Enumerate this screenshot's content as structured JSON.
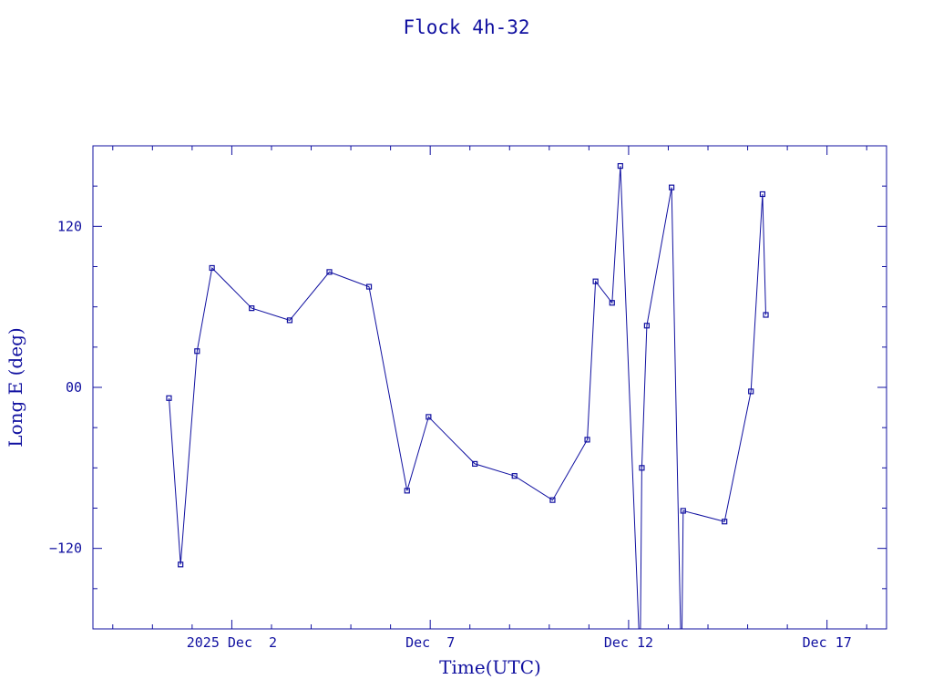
{
  "colors": {
    "ink": "#1010a0",
    "background": "#ffffff"
  },
  "chart_data": {
    "type": "line",
    "title": "Flock 4h-32",
    "xlabel": "Time(UTC)",
    "ylabel": "Long E (deg)",
    "x_ticks": [
      {
        "label": "2025 Dec  2",
        "x": "2025-12-02"
      },
      {
        "label": "Dec  7",
        "x": "2025-12-07"
      },
      {
        "label": "Dec 12",
        "x": "2025-12-12"
      },
      {
        "label": "Dec 17",
        "x": "2025-12-17"
      }
    ],
    "y_ticks": [
      {
        "label": "120",
        "value": 120
      },
      {
        "label": "00",
        "value": 0
      },
      {
        "label": "−120",
        "value": -120
      }
    ],
    "xlim": [
      "2025-11-28 12:00",
      "2025-12-18 12:00"
    ],
    "ylim": [
      -180,
      180
    ],
    "markers": "square",
    "grid": false,
    "legend": "none",
    "series": [
      {
        "points": [
          {
            "x": "2025-11-30 10:00",
            "y": -8
          },
          {
            "x": "2025-11-30 17:00",
            "y": -132
          },
          {
            "x": "2025-12-01 03:00",
            "y": 27
          },
          {
            "x": "2025-12-01 12:00",
            "y": 89
          },
          {
            "x": "2025-12-02 12:00",
            "y": 59
          },
          {
            "x": "2025-12-03 11:00",
            "y": 50
          },
          {
            "x": "2025-12-04 11:00",
            "y": 86
          },
          {
            "x": "2025-12-05 11:00",
            "y": 75
          },
          {
            "x": "2025-12-06 10:00",
            "y": -77
          },
          {
            "x": "2025-12-06 23:00",
            "y": -22
          },
          {
            "x": "2025-12-08 03:00",
            "y": -57
          },
          {
            "x": "2025-12-09 03:00",
            "y": -66
          },
          {
            "x": "2025-12-10 02:00",
            "y": -84
          },
          {
            "x": "2025-12-10 23:00",
            "y": -39
          },
          {
            "x": "2025-12-11 04:00",
            "y": 79
          },
          {
            "x": "2025-12-11 14:00",
            "y": 63
          },
          {
            "x": "2025-12-11 19:00",
            "y": 165
          },
          {
            "x": "2025-12-12 07:00",
            "y": -205
          },
          {
            "x": "2025-12-12 08:00",
            "y": -60
          },
          {
            "x": "2025-12-12 11:00",
            "y": 46
          },
          {
            "x": "2025-12-13 02:00",
            "y": 149
          },
          {
            "x": "2025-12-13 08:00",
            "y": -214
          },
          {
            "x": "2025-12-13 09:00",
            "y": -92
          },
          {
            "x": "2025-12-14 10:00",
            "y": -100
          },
          {
            "x": "2025-12-15 02:00",
            "y": -3
          },
          {
            "x": "2025-12-15 09:00",
            "y": 144
          },
          {
            "x": "2025-12-15 11:00",
            "y": 54
          }
        ]
      }
    ]
  }
}
